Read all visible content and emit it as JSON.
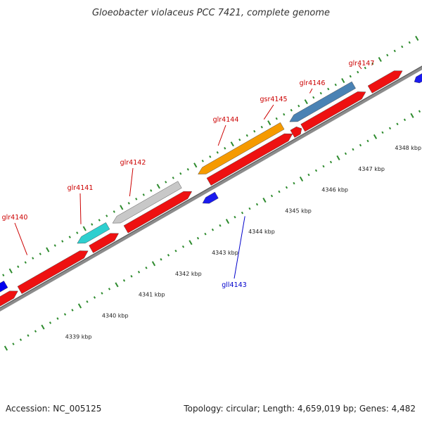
{
  "title": "Gloeobacter violaceus PCC 7421, complete genome",
  "footer": {
    "accession": "Accession: NC_005125",
    "summary": "Topology: circular; Length: 4,659,019 bp; Genes: 4,482"
  },
  "colors": {
    "forward_label": "#cc0000",
    "reverse_label": "#0000cc",
    "tick": "#2e8b2e",
    "backbone": "#8c8c8c"
  },
  "kbp_labels": [
    "4339 kbp",
    "4340 kbp",
    "4341 kbp",
    "4342 kbp",
    "4343 kbp",
    "4344 kbp",
    "4345 kbp",
    "4346 kbp",
    "4347 kbp",
    "4348 kbp"
  ],
  "gene_labels": [
    {
      "text": "glr4140",
      "strand": "forward"
    },
    {
      "text": "glr4141",
      "strand": "forward"
    },
    {
      "text": "glr4142",
      "strand": "forward"
    },
    {
      "text": "glr4144",
      "strand": "forward"
    },
    {
      "text": "gsr4145",
      "strand": "forward"
    },
    {
      "text": "glr4146",
      "strand": "forward"
    },
    {
      "text": "glr4147",
      "strand": "forward"
    },
    {
      "text": "gll4143",
      "strand": "reverse"
    }
  ],
  "features": {
    "outer": [
      {
        "name": "glr4140-cog",
        "color": "#0000ee"
      },
      {
        "name": "glr4141-cog",
        "color": "#2ecfcf"
      },
      {
        "name": "glr4142-cog",
        "color": "#c8c8c8"
      },
      {
        "name": "glr4144-cog",
        "color": "#f59a00"
      },
      {
        "name": "glr4146-cog",
        "color": "#4a82b4"
      }
    ],
    "forward": [
      {
        "name": "cds-a",
        "color": "#ee1111"
      },
      {
        "name": "cds-b",
        "color": "#ee1111"
      },
      {
        "name": "cds-c",
        "color": "#ee1111"
      },
      {
        "name": "cds-d",
        "color": "#ee1111"
      },
      {
        "name": "cds-e",
        "color": "#ee1111"
      },
      {
        "name": "cds-f",
        "color": "#ee1111"
      },
      {
        "name": "cds-g",
        "color": "#ee1111"
      },
      {
        "name": "cds-h",
        "color": "#ee1111"
      }
    ],
    "reverse": [
      {
        "name": "gll4143-cds",
        "color": "#1a1aee"
      },
      {
        "name": "edge-cds-right",
        "color": "#1a1aee"
      }
    ]
  }
}
